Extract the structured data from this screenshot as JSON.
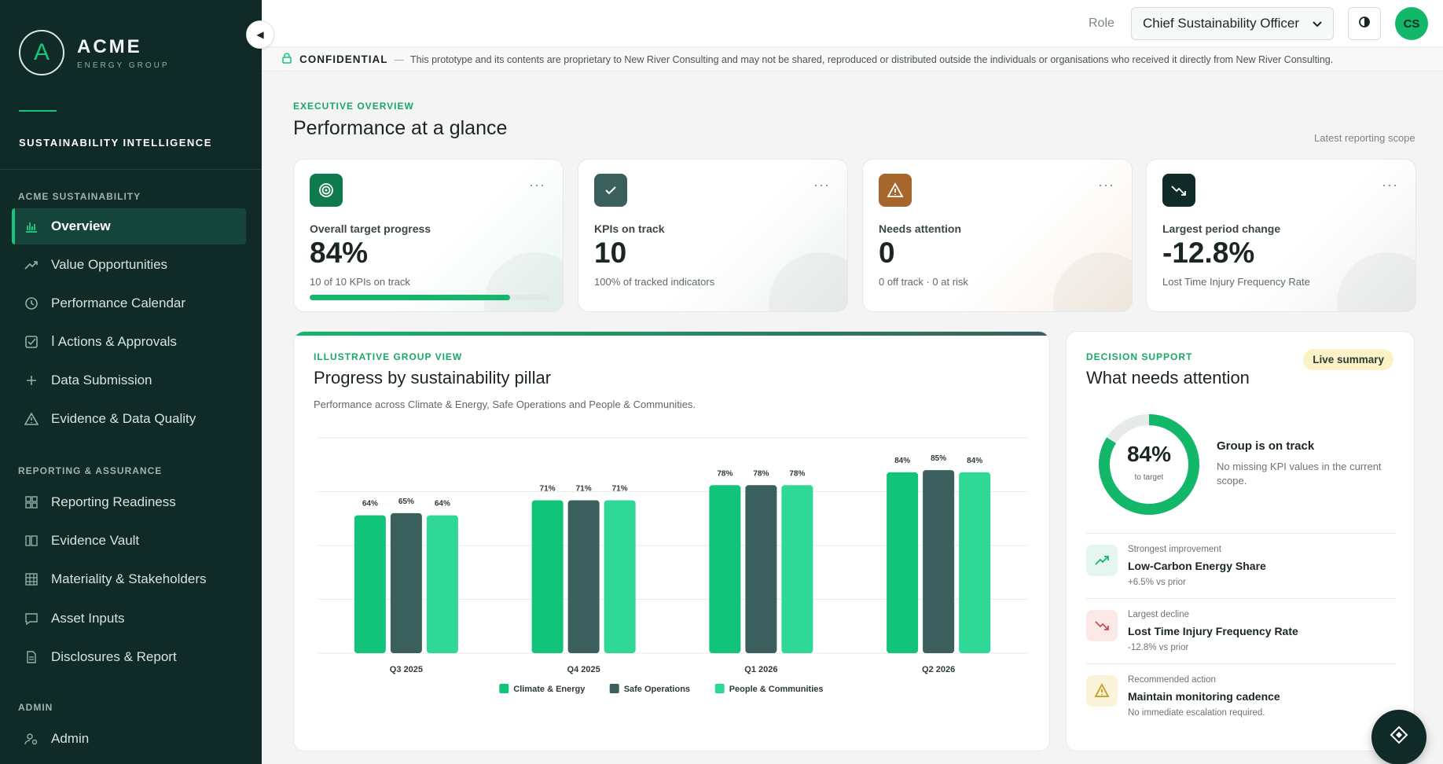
{
  "sidebar": {
    "brand_name": "ACME",
    "brand_sub": "ENERGY GROUP",
    "logo_letter": "A",
    "product_title": "SUSTAINABILITY INTELLIGENCE",
    "sections": {
      "acme": "ACME SUSTAINABILITY",
      "reporting": "REPORTING & ASSURANCE",
      "admin": "ADMIN"
    },
    "items": [
      {
        "label": "Overview",
        "icon": "bar-chart-icon",
        "active": true
      },
      {
        "label": "Value Opportunities",
        "icon": "trend-up-icon"
      },
      {
        "label": "Performance Calendar",
        "icon": "clock-icon"
      },
      {
        "label": "Actions & Approvals",
        "icon": "checkbox-icon"
      },
      {
        "label": "Data Submission",
        "icon": "plus-icon"
      },
      {
        "label": "Evidence & Data Quality",
        "icon": "warning-icon"
      },
      {
        "label": "Reporting Readiness",
        "icon": "grid-icon"
      },
      {
        "label": "Evidence Vault",
        "icon": "columns-icon"
      },
      {
        "label": "Materiality & Stakeholders",
        "icon": "table-icon"
      },
      {
        "label": "Asset Inputs",
        "icon": "chat-icon"
      },
      {
        "label": "Disclosures & Report",
        "icon": "document-icon"
      },
      {
        "label": "Admin",
        "icon": "users-gear-icon"
      }
    ],
    "actions_prefix": "ⅼ"
  },
  "header": {
    "role_label": "Role",
    "role_value": "Chief Sustainability Officer",
    "avatar_initials": "CS"
  },
  "banner": {
    "label": "CONFIDENTIAL",
    "dash": "—",
    "text": "This prototype and its contents are proprietary to New River Consulting and may not be shared, reproduced or distributed outside the individuals or organisations who received it directly from New River Consulting."
  },
  "overview": {
    "eyebrow": "EXECUTIVE OVERVIEW",
    "title": "Performance at a glance",
    "scope": "Latest reporting scope"
  },
  "kpis": [
    {
      "label": "Overall target progress",
      "value": "84%",
      "sub": "10 of 10 KPIs on track",
      "progress": 0.84,
      "icon": "target-icon",
      "color": "#0f7a4e"
    },
    {
      "label": "KPIs on track",
      "value": "10",
      "sub": "100% of tracked indicators",
      "icon": "check-icon",
      "color": "#3a5f5c"
    },
    {
      "label": "Needs attention",
      "value": "0",
      "sub": "0 off track · 0 at risk",
      "icon": "warning-icon",
      "color": "#a6662c"
    },
    {
      "label": "Largest period change",
      "value": "-12.8%",
      "sub": "Lost Time Injury Frequency Rate",
      "icon": "trend-down-icon",
      "color": "#0f2a27"
    }
  ],
  "kpi_dots": "···",
  "chart_card": {
    "eyebrow": "ILLUSTRATIVE GROUP VIEW",
    "title": "Progress by sustainability pillar",
    "description": "Performance across Climate & Energy, Safe Operations and People & Communities."
  },
  "chart_data": {
    "type": "bar",
    "categories": [
      "Q3 2025",
      "Q4 2025",
      "Q1 2026",
      "Q2 2026"
    ],
    "series": [
      {
        "name": "Climate & Energy",
        "values": [
          64,
          71,
          78,
          84
        ],
        "color": "#12c37a"
      },
      {
        "name": "Safe Operations",
        "values": [
          65,
          71,
          78,
          85
        ],
        "color": "#3a5f5c"
      },
      {
        "name": "People & Communities",
        "values": [
          64,
          71,
          78,
          84
        ],
        "color": "#2fd896"
      }
    ],
    "ylim": [
      0,
      100
    ],
    "grid": true,
    "legend": "bottom-center",
    "value_suffix": "%"
  },
  "attention": {
    "eyebrow": "DECISION SUPPORT",
    "title": "What needs attention",
    "badge": "Live summary",
    "ring_value": "84%",
    "ring_progress": 0.84,
    "ring_sub": "to target",
    "status_title": "Group is on track",
    "status_text": "No missing KPI values in the current scope.",
    "rows": [
      {
        "kicker": "Strongest improvement",
        "title": "Low-Carbon Energy Share",
        "sub": "+6.5% vs prior",
        "icon": "trend-up-icon",
        "icon_color": "#12b76a",
        "bg": "#e4f6ef"
      },
      {
        "kicker": "Largest decline",
        "title": "Lost Time Injury Frequency Rate",
        "sub": "-12.8% vs prior",
        "icon": "trend-down-icon",
        "icon_color": "#c4534b",
        "bg": "#fbe9e7"
      },
      {
        "kicker": "Recommended action",
        "title": "Maintain monitoring cadence",
        "sub": "No immediate escalation required.",
        "icon": "warning-icon",
        "icon_color": "#c89a1c",
        "bg": "#fbf3d9"
      }
    ]
  }
}
